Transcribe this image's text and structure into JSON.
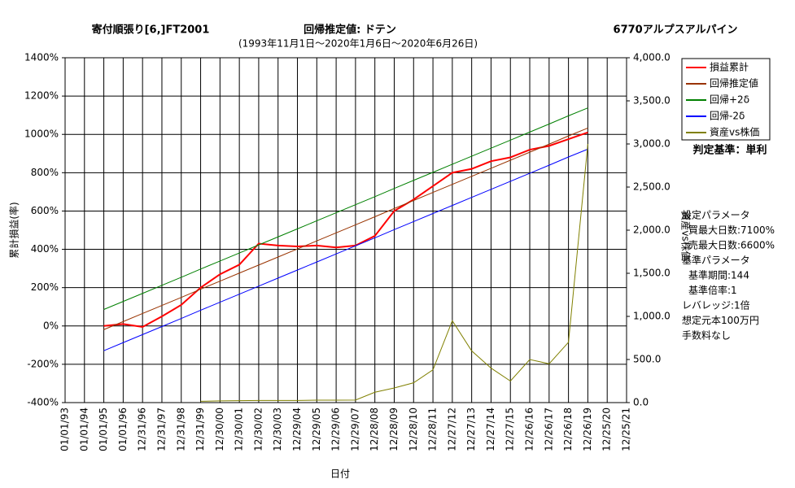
{
  "chart_data": {
    "type": "line",
    "title": "寄付順張り[6,]FT2001",
    "subtitle": "回帰推定値: ドテン",
    "period": "(1993年11月1日～2020年1月6日～2020年6月26日)",
    "ticker": "6770アルプスアルパイン",
    "y_label": "累計損益(率)",
    "y2_label": "資産vs株価",
    "x_label": "日付",
    "criterion": "判定基準：単利",
    "notes": [
      "設定パラメータ",
      "買最大日数:7100%",
      "売最大日数:6600%",
      "基準パラメータ",
      "基準期間:144",
      "基準倍率:1",
      "レバレッジ:1倍",
      "想定元本100万円",
      "手数料なし"
    ],
    "categories": [
      "01/01/93",
      "01/01/94",
      "01/01/95",
      "01/01/96",
      "12/31/96",
      "12/31/97",
      "12/31/98",
      "12/31/99",
      "12/30/00",
      "12/30/01",
      "12/30/02",
      "12/30/03",
      "12/29/04",
      "12/29/05",
      "12/29/06",
      "12/29/07",
      "12/28/08",
      "12/28/09",
      "12/28/10",
      "12/28/11",
      "12/27/12",
      "12/27/13",
      "12/27/14",
      "12/27/15",
      "12/26/16",
      "12/26/17",
      "12/26/18",
      "12/26/19",
      "12/25/20",
      "12/25/21"
    ],
    "series": [
      {
        "name": "損益累計",
        "color": "#ff0000",
        "width": 2,
        "values": [
          null,
          null,
          0,
          10,
          -5,
          50,
          110,
          200,
          270,
          320,
          430,
          420,
          415,
          420,
          410,
          420,
          470,
          600,
          660,
          730,
          800,
          820,
          860,
          880,
          920,
          940,
          975,
          1010,
          null,
          null
        ]
      },
      {
        "name": "回帰推定値",
        "color": "#993300",
        "width": 1,
        "values": [
          null,
          null,
          -19,
          23,
          65,
          107,
          149,
          192,
          234,
          276,
          318,
          360,
          402,
          444,
          486,
          528,
          570,
          613,
          655,
          697,
          739,
          781,
          823,
          865,
          907,
          949,
          992,
          1033,
          null,
          null
        ]
      },
      {
        "name": "回帰+2δ",
        "color": "#008000",
        "width": 1,
        "values": [
          null,
          null,
          86,
          128,
          170,
          212,
          254,
          297,
          339,
          381,
          423,
          465,
          507,
          549,
          591,
          633,
          675,
          718,
          760,
          802,
          844,
          886,
          928,
          970,
          1012,
          1054,
          1097,
          1138,
          null,
          null
        ]
      },
      {
        "name": "回帰-2δ",
        "color": "#0000ff",
        "width": 1,
        "values": [
          null,
          null,
          -129,
          -87,
          -45,
          -3,
          39,
          82,
          124,
          166,
          208,
          250,
          292,
          334,
          376,
          418,
          460,
          503,
          545,
          587,
          629,
          671,
          713,
          755,
          797,
          839,
          882,
          923,
          null,
          null
        ]
      },
      {
        "name": "資産vs株価",
        "color": "#808000",
        "width": 1,
        "axis": "y2",
        "values": [
          null,
          null,
          null,
          null,
          null,
          null,
          null,
          15,
          20,
          22,
          25,
          25,
          25,
          28,
          28,
          30,
          120,
          170,
          230,
          380,
          950,
          600,
          400,
          250,
          500,
          450,
          700,
          3000,
          null,
          null
        ]
      }
    ],
    "ylim": [
      -400,
      1400
    ],
    "yticks": [
      {
        "value": -400,
        "label": "-400%"
      },
      {
        "value": -200,
        "label": "-200%"
      },
      {
        "value": 0,
        "label": "0%"
      },
      {
        "value": 200,
        "label": "200%"
      },
      {
        "value": 400,
        "label": "400%"
      },
      {
        "value": 600,
        "label": "600%"
      },
      {
        "value": 800,
        "label": "800%"
      },
      {
        "value": 1000,
        "label": "1000%"
      },
      {
        "value": 1200,
        "label": "1200%"
      },
      {
        "value": 1400,
        "label": "1400%"
      }
    ],
    "y2lim": [
      0,
      4000
    ],
    "y2ticks": [
      {
        "value": 0,
        "label": "0.0"
      },
      {
        "value": 500,
        "label": "500.0"
      },
      {
        "value": 1000,
        "label": "1,000.0"
      },
      {
        "value": 1500,
        "label": "1,500.0"
      },
      {
        "value": 2000,
        "label": "2,000.0"
      },
      {
        "value": 2500,
        "label": "2,500.0"
      },
      {
        "value": 3000,
        "label": "3,000.0"
      },
      {
        "value": 3500,
        "label": "3,500.0"
      },
      {
        "value": 4000,
        "label": "4,000.0"
      }
    ],
    "grid": true,
    "legend": "right"
  }
}
